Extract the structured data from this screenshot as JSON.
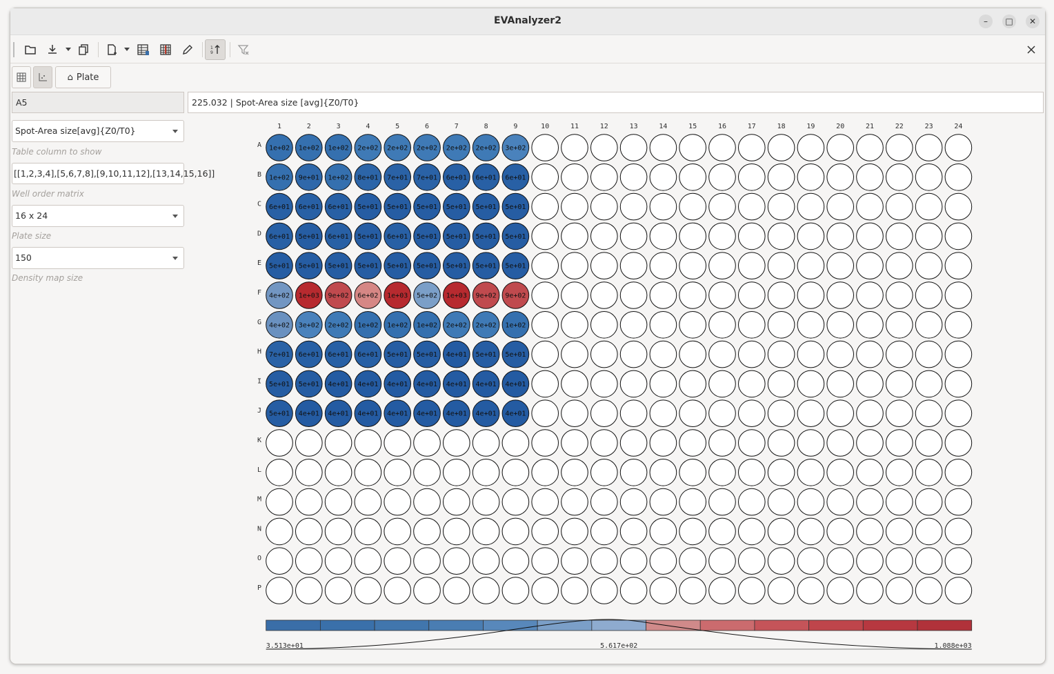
{
  "window": {
    "title": "EVAnalyzer2"
  },
  "toolbar": {
    "icons": [
      "folder-open-icon",
      "download-icon",
      "copy-icon",
      "new-document-icon",
      "table-icon",
      "heatmap-icon",
      "edit-pencil-icon",
      "sort-icon",
      "clear-filter-icon"
    ],
    "close_icon": "close-icon"
  },
  "view_buttons": {
    "table_icon": "grid-icon",
    "chart_icon": "scatter-icon",
    "plate_label": "Plate"
  },
  "selected_well": "A5",
  "value_display": "225.032 | Spot-Area size [avg]{Z0/T0}",
  "column_combo": {
    "value": "Spot-Area size[avg]{Z0/T0}",
    "hint": "Table column to show"
  },
  "well_order": {
    "value": "[[1,2,3,4],[5,6,7,8],[9,10,11,12],[13,14,15,16]]",
    "hint": "Well order matrix"
  },
  "plate_size": {
    "value": "16 x 24",
    "hint": "Plate size"
  },
  "density_map": {
    "value": "150",
    "hint": "Density map size"
  },
  "plate": {
    "columns": [
      "1",
      "2",
      "3",
      "4",
      "5",
      "6",
      "7",
      "8",
      "9",
      "10",
      "11",
      "12",
      "13",
      "14",
      "15",
      "16",
      "17",
      "18",
      "19",
      "20",
      "21",
      "22",
      "23",
      "24"
    ],
    "rows": [
      "A",
      "B",
      "C",
      "D",
      "E",
      "F",
      "G",
      "H",
      "I",
      "J",
      "K",
      "L",
      "M",
      "N",
      "O",
      "P"
    ],
    "values": [
      [
        "1e+02",
        "1e+02",
        "1e+02",
        "2e+02",
        "2e+02",
        "2e+02",
        "2e+02",
        "2e+02",
        "3e+02"
      ],
      [
        "1e+02",
        "9e+01",
        "1e+02",
        "8e+01",
        "7e+01",
        "7e+01",
        "6e+01",
        "6e+01",
        "6e+01"
      ],
      [
        "6e+01",
        "6e+01",
        "6e+01",
        "5e+01",
        "5e+01",
        "5e+01",
        "5e+01",
        "5e+01",
        "5e+01"
      ],
      [
        "6e+01",
        "5e+01",
        "6e+01",
        "5e+01",
        "6e+01",
        "5e+01",
        "5e+01",
        "5e+01",
        "5e+01"
      ],
      [
        "5e+01",
        "5e+01",
        "5e+01",
        "5e+01",
        "5e+01",
        "5e+01",
        "5e+01",
        "5e+01",
        "5e+01"
      ],
      [
        "4e+02",
        "1e+03",
        "9e+02",
        "6e+02",
        "1e+03",
        "5e+02",
        "1e+03",
        "9e+02",
        "9e+02"
      ],
      [
        "4e+02",
        "3e+02",
        "2e+02",
        "1e+02",
        "1e+02",
        "1e+02",
        "2e+02",
        "2e+02",
        "1e+02"
      ],
      [
        "7e+01",
        "6e+01",
        "6e+01",
        "6e+01",
        "5e+01",
        "5e+01",
        "4e+01",
        "5e+01",
        "5e+01"
      ],
      [
        "5e+01",
        "5e+01",
        "4e+01",
        "4e+01",
        "4e+01",
        "4e+01",
        "4e+01",
        "4e+01",
        "4e+01"
      ],
      [
        "5e+01",
        "4e+01",
        "4e+01",
        "4e+01",
        "4e+01",
        "4e+01",
        "4e+01",
        "4e+01",
        "4e+01"
      ]
    ],
    "fills": [
      [
        "#3570af",
        "#3570af",
        "#3570af",
        "#3f7ab6",
        "#3f7ab6",
        "#3f7ab6",
        "#3f7ab6",
        "#3f7ab6",
        "#4a82bc"
      ],
      [
        "#3570af",
        "#2f68aa",
        "#3570af",
        "#2c65a8",
        "#2a62a6",
        "#2a62a6",
        "#2860a5",
        "#2860a5",
        "#2860a5"
      ],
      [
        "#2860a5",
        "#2860a5",
        "#2860a5",
        "#265da3",
        "#265da3",
        "#265da3",
        "#265da3",
        "#265da3",
        "#265da3"
      ],
      [
        "#2860a5",
        "#265da3",
        "#2860a5",
        "#265da3",
        "#2860a5",
        "#265da3",
        "#265da3",
        "#265da3",
        "#265da3"
      ],
      [
        "#265da3",
        "#265da3",
        "#265da3",
        "#265da3",
        "#265da3",
        "#265da3",
        "#265da3",
        "#265da3",
        "#265da3"
      ],
      [
        "#7296c2",
        "#b72a2f",
        "#c04a4e",
        "#d68785",
        "#b72a2f",
        "#7b9fc8",
        "#b72a2f",
        "#c04a4e",
        "#c04a4e"
      ],
      [
        "#6a91c0",
        "#4a82bc",
        "#3f7ab6",
        "#3570af",
        "#3570af",
        "#3570af",
        "#3f7ab6",
        "#3f7ab6",
        "#3570af"
      ],
      [
        "#2a62a6",
        "#2860a5",
        "#2860a5",
        "#2860a5",
        "#265da3",
        "#265da3",
        "#245ba2",
        "#265da3",
        "#265da3"
      ],
      [
        "#265da3",
        "#265da3",
        "#245ba2",
        "#245ba2",
        "#245ba2",
        "#245ba2",
        "#245ba2",
        "#245ba2",
        "#245ba2"
      ],
      [
        "#265da3",
        "#245ba2",
        "#245ba2",
        "#245ba2",
        "#245ba2",
        "#245ba2",
        "#245ba2",
        "#245ba2",
        "#245ba2"
      ]
    ]
  },
  "colorbar": {
    "min_label": "3.513e+01",
    "mid_label": "5.617e+02",
    "max_label": "1.088e+03",
    "colors": [
      "#3a6ea8",
      "#3a70aa",
      "#4176ad",
      "#4a7db2",
      "#5888bb",
      "#7b9fc8",
      "#8eabcf",
      "#d08a8a",
      "#cb6b6e",
      "#c55459",
      "#bf454b",
      "#b73840",
      "#b1323a"
    ]
  }
}
